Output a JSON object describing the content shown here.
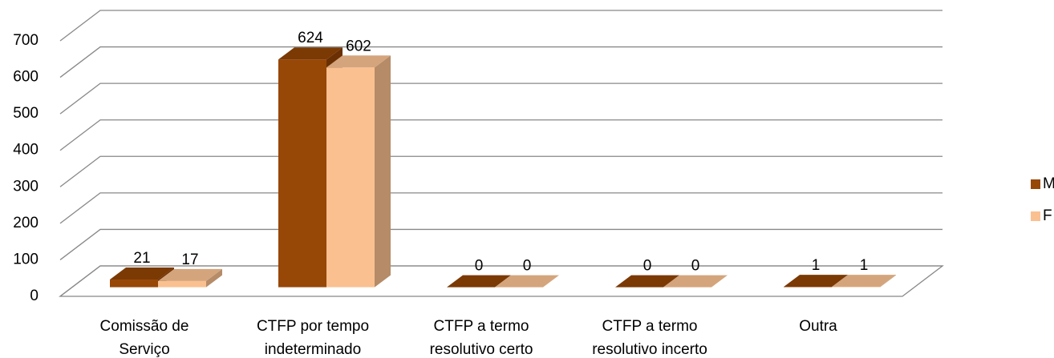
{
  "chart_data": {
    "type": "bar3d",
    "categories": [
      "Comissão de\nServiço",
      "CTFP por tempo\nindeterminado",
      "CTFP a termo\nresolutivo certo",
      "CTFP a termo\nresolutivo incerto",
      "Outra"
    ],
    "series": [
      {
        "name": "M",
        "color": "#974706",
        "top": "#7b3904",
        "side": "#6a3003",
        "values": [
          21,
          624,
          0,
          0,
          1
        ]
      },
      {
        "name": "F",
        "color": "#fac090",
        "top": "#d4a57c",
        "side": "#b58b68",
        "values": [
          17,
          602,
          0,
          0,
          1
        ]
      }
    ],
    "ylim": [
      0,
      700
    ],
    "yticks": [
      0,
      100,
      200,
      300,
      400,
      500,
      600,
      700
    ],
    "grid": true
  }
}
